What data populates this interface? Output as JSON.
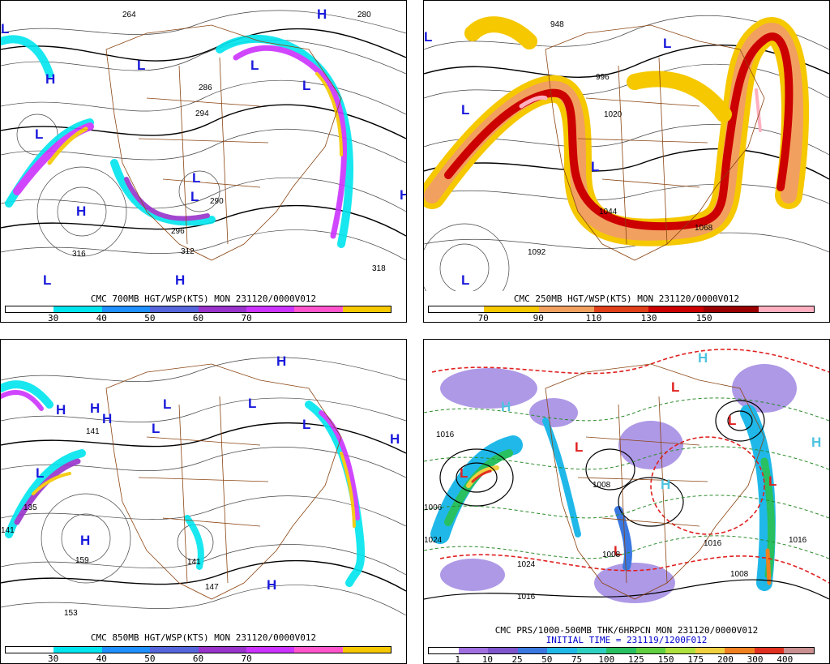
{
  "panels": [
    {
      "caption": "CMC 700MB HGT/WSP(KTS) MON 231120/0000V012",
      "colorbar": [
        "#ffffff",
        "#00e5ee",
        "#1e90ff",
        "#5566dd",
        "#9933cc",
        "#cc33ff",
        "#ff55cc",
        "#f5c800"
      ],
      "ticks": [
        "30",
        "40",
        "50",
        "60",
        "70"
      ],
      "map_labels": [
        "H",
        "L",
        "L",
        "L",
        "L",
        "L",
        "L",
        "H",
        "H",
        "L",
        "H",
        "H",
        "L",
        "286",
        "294",
        "290",
        "296",
        "312",
        "316",
        "318",
        "264",
        "280"
      ]
    },
    {
      "caption": "CMC 250MB HGT/WSP(KTS) MON 231120/0000V012",
      "colorbar": [
        "#ffffff",
        "#f5c800",
        "#f2a060",
        "#e0401a",
        "#cc0000",
        "#9a0000",
        "#ffb0c0"
      ],
      "ticks": [
        "70",
        "90",
        "110",
        "130",
        "150"
      ],
      "map_labels": [
        "L",
        "L",
        "L",
        "L",
        "L",
        "948",
        "996",
        "1020",
        "1044",
        "1068",
        "1092"
      ]
    },
    {
      "caption": "CMC 850MB HGT/WSP(KTS) MON 231120/0000V012",
      "colorbar": [
        "#ffffff",
        "#00e5ee",
        "#1e90ff",
        "#5566dd",
        "#9933cc",
        "#cc33ff",
        "#ff55cc",
        "#f5c800"
      ],
      "ticks": [
        "30",
        "40",
        "50",
        "60",
        "70"
      ],
      "map_labels": [
        "H",
        "H",
        "H",
        "L",
        "L",
        "L",
        "L",
        "L",
        "H",
        "H",
        "H",
        "H",
        "141",
        "135",
        "159",
        "153",
        "141",
        "141",
        "147"
      ]
    },
    {
      "caption": "CMC PRS/1000-500MB THK/6HRPCN MON 231120/0000V012",
      "initial_time": "INITIAL TIME = 231119/1200F012",
      "colorbar": [
        "#ffffff",
        "#a070e0",
        "#7e55cc",
        "#3a78e0",
        "#20b8e8",
        "#30d0c0",
        "#28c060",
        "#60d040",
        "#b0e040",
        "#f0d040",
        "#f08020",
        "#e03020",
        "#c89090"
      ],
      "ticks": [
        "1",
        "10",
        "25",
        "50",
        "75",
        "100",
        "125",
        "150",
        "175",
        "200",
        "300",
        "400"
      ],
      "map_labels": [
        "H",
        "H",
        "H",
        "H",
        "L",
        "L",
        "L",
        "L",
        "L",
        "L",
        "1008",
        "1016",
        "1016",
        "1024",
        "1016",
        "1008",
        "1016",
        "1024",
        "1008",
        "1006"
      ]
    }
  ]
}
